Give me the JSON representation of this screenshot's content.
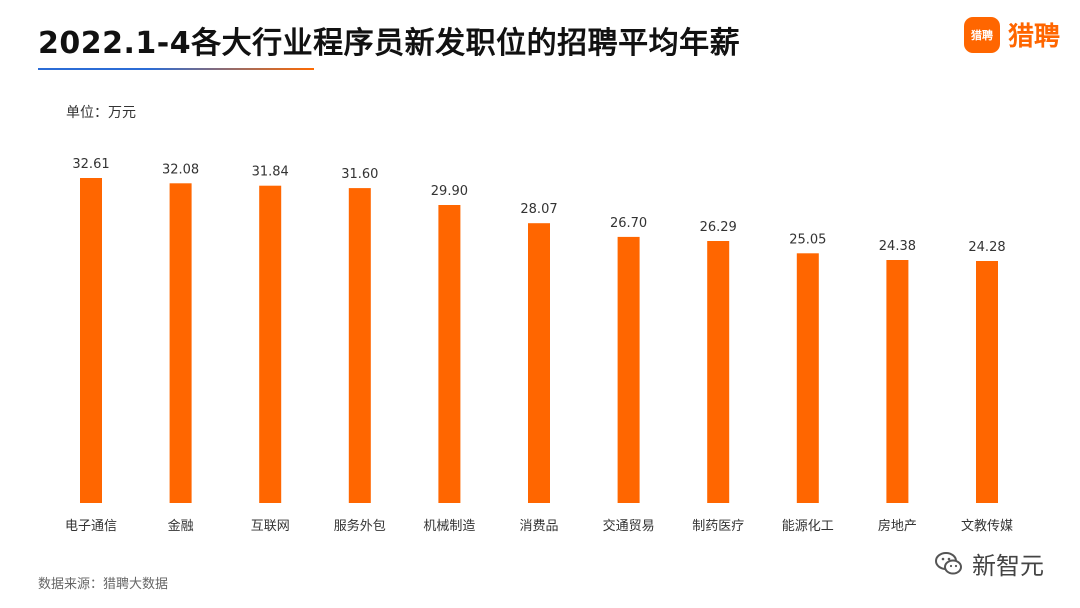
{
  "header": {
    "title": "2022.1-4各大行业程序员新发职位的招聘平均年薪",
    "logo_badge": "猎聘",
    "logo_text": "猎聘"
  },
  "unit_label": "单位：万元",
  "footer": {
    "source": "数据来源：猎聘大数据",
    "watermark": "新智元"
  },
  "colors": {
    "bar": "#ff6600",
    "brand": "#ff6600"
  },
  "chart_data": {
    "type": "bar",
    "title": "2022.1-4各大行业程序员新发职位的招聘平均年薪",
    "xlabel": "",
    "ylabel": "单位：万元",
    "categories": [
      "电子通信",
      "金融",
      "互联网",
      "服务外包",
      "机械制造",
      "消费品",
      "交通贸易",
      "制药医疗",
      "能源化工",
      "房地产",
      "文教传媒"
    ],
    "values": [
      32.61,
      32.08,
      31.84,
      31.6,
      29.9,
      28.07,
      26.7,
      26.29,
      25.05,
      24.38,
      24.28
    ],
    "value_labels": [
      "32.61",
      "32.08",
      "31.84",
      "31.60",
      "29.90",
      "28.07",
      "26.70",
      "26.29",
      "25.05",
      "24.38",
      "24.28"
    ],
    "grid": false,
    "legend": "none"
  }
}
